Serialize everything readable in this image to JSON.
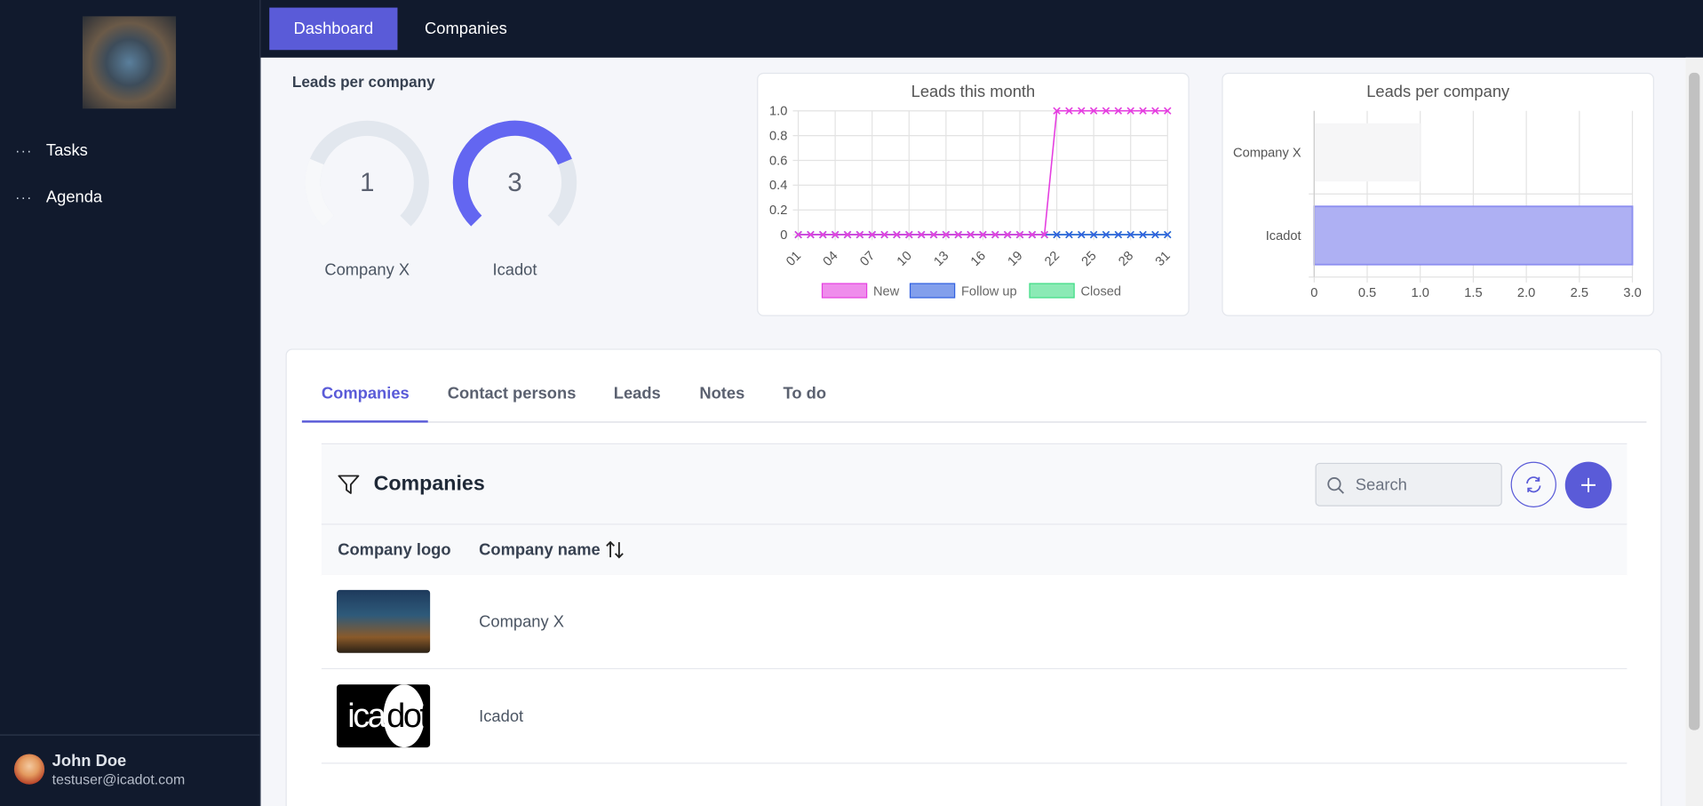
{
  "sidebar": {
    "menu": [
      "Tasks",
      "Agenda"
    ],
    "user": {
      "name": "John Doe",
      "email": "testuser@icadot.com"
    }
  },
  "nav": {
    "items": [
      "Dashboard",
      "Companies"
    ],
    "active": 0
  },
  "gauges": {
    "title": "Leads per company",
    "items": [
      {
        "label": "Company X",
        "value": 1
      },
      {
        "label": "Icadot",
        "value": 3
      }
    ],
    "color": "#6366f1",
    "track_color": "#e2e7ee"
  },
  "line_chart": {
    "type": "line",
    "title": "Leads this month",
    "categories": [
      "01",
      null,
      null,
      "04",
      null,
      null,
      "07",
      null,
      null,
      "10",
      null,
      null,
      "13",
      null,
      null,
      "16",
      null,
      null,
      "19",
      null,
      null,
      "22",
      null,
      null,
      "25",
      null,
      null,
      "28",
      null,
      null,
      "31"
    ],
    "ylim": [
      0,
      1
    ],
    "yticks": [
      0,
      0.2,
      0.4,
      0.6,
      0.8,
      {
        "value": 1,
        "label": "1.0"
      }
    ],
    "grid": true,
    "series": [
      {
        "name": "New",
        "color": "#e53fe0",
        "values": [
          0,
          0,
          0,
          0,
          0,
          0,
          0,
          0,
          0,
          0,
          0,
          0,
          0,
          0,
          0,
          0,
          0,
          0,
          0,
          0,
          0,
          1,
          1,
          1,
          1,
          1,
          1,
          1,
          1,
          1,
          1
        ]
      },
      {
        "name": "Follow up",
        "color": "#2f5fe0",
        "values": [
          0,
          0,
          0,
          0,
          0,
          0,
          0,
          0,
          0,
          0,
          0,
          0,
          0,
          0,
          0,
          0,
          0,
          0,
          0,
          0,
          0,
          0,
          0,
          0,
          0,
          0,
          0,
          0,
          0,
          0,
          0
        ]
      },
      {
        "name": "Closed",
        "color": "#3ddc84",
        "values": [
          0,
          0,
          0,
          0,
          0,
          0,
          0,
          0,
          0,
          0,
          0,
          0,
          0,
          0,
          0,
          0,
          0,
          0,
          0,
          0,
          0,
          0,
          0,
          0,
          0,
          0,
          0,
          0,
          0,
          0,
          0
        ]
      }
    ]
  },
  "bar_chart": {
    "type": "bar",
    "orientation": "horizontal",
    "title": "Leads per company",
    "categories": [
      "Company X",
      "Icadot"
    ],
    "values": [
      1,
      3
    ],
    "colors": [
      "#f6f6f7",
      "#aeb0f3"
    ],
    "xlim": [
      0,
      3
    ],
    "xticks": [
      0,
      0.5,
      {
        "value": 1,
        "label": "1.0"
      },
      1.5,
      {
        "value": 2,
        "label": "2.0"
      },
      2.5,
      {
        "value": 3,
        "label": "3.0"
      }
    ],
    "grid": true
  },
  "tabs": {
    "items": [
      "Companies",
      "Contact persons",
      "Leads",
      "Notes",
      "To do"
    ],
    "active": 0
  },
  "table": {
    "title": "Companies",
    "search_placeholder": "Search",
    "columns": [
      "Company logo",
      "Company name"
    ],
    "rows": [
      {
        "name": "Company X"
      },
      {
        "name": "Icadot",
        "logo_text": [
          "ica",
          "dot"
        ]
      }
    ]
  }
}
